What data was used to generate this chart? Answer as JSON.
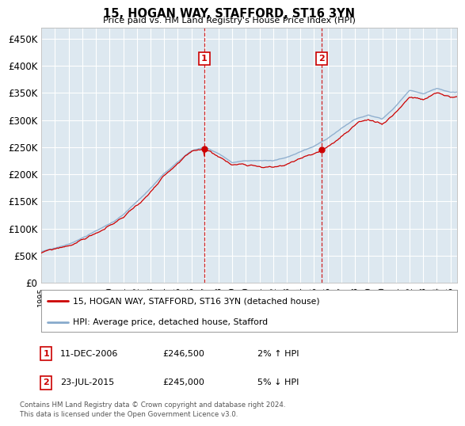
{
  "title": "15, HOGAN WAY, STAFFORD, ST16 3YN",
  "subtitle": "Price paid vs. HM Land Registry's House Price Index (HPI)",
  "ytick_values": [
    0,
    50000,
    100000,
    150000,
    200000,
    250000,
    300000,
    350000,
    400000,
    450000
  ],
  "ylim": [
    0,
    470000
  ],
  "sale1_t": 2006.917,
  "sale1_value": 246500,
  "sale2_t": 2015.542,
  "sale2_value": 245000,
  "line_color_property": "#cc0000",
  "line_color_hpi": "#88aacc",
  "legend_property": "15, HOGAN WAY, STAFFORD, ST16 3YN (detached house)",
  "legend_hpi": "HPI: Average price, detached house, Stafford",
  "sale1_info_label": "1",
  "sale1_info_date": "11-DEC-2006",
  "sale1_info_price": "£246,500",
  "sale1_info_hpi": "2% ↑ HPI",
  "sale2_info_label": "2",
  "sale2_info_date": "23-JUL-2015",
  "sale2_info_price": "£245,000",
  "sale2_info_hpi": "5% ↓ HPI",
  "footnote_line1": "Contains HM Land Registry data © Crown copyright and database right 2024.",
  "footnote_line2": "This data is licensed under the Open Government Licence v3.0.",
  "background_color": "#ffffff",
  "plot_bg_color": "#dde8f0",
  "grid_color": "#ffffff",
  "vline_color": "#cc0000",
  "marker_color": "#cc0000",
  "label_box_color": "#cc0000",
  "xlim_start": 1995,
  "xlim_end": 2025.5,
  "xtick_years": [
    1995,
    1996,
    1997,
    1998,
    1999,
    2000,
    2001,
    2002,
    2003,
    2004,
    2005,
    2006,
    2007,
    2008,
    2009,
    2010,
    2011,
    2012,
    2013,
    2014,
    2015,
    2016,
    2017,
    2018,
    2019,
    2020,
    2021,
    2022,
    2023,
    2024,
    2025
  ]
}
